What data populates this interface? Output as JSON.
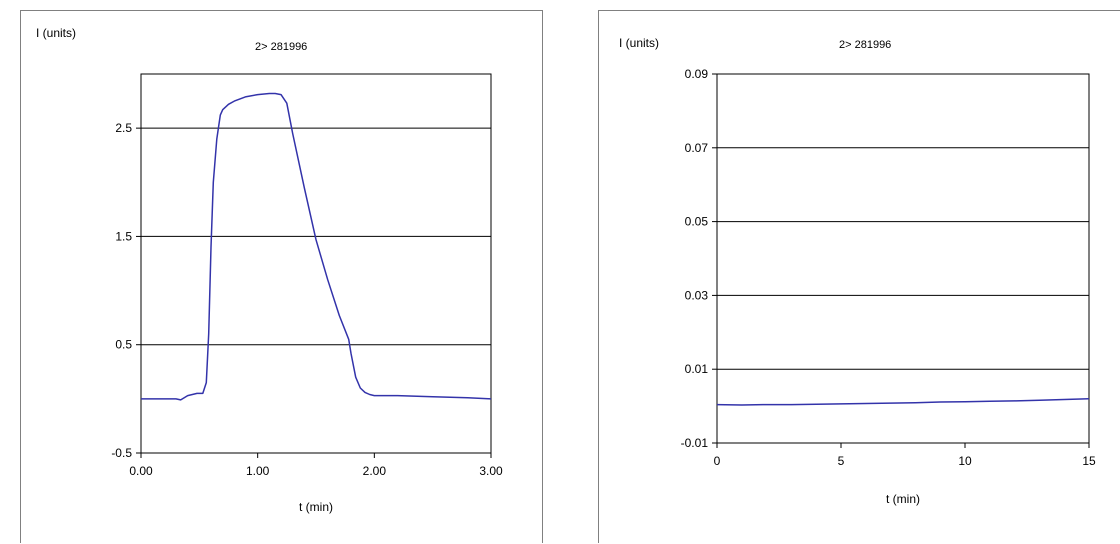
{
  "chart_data": [
    {
      "type": "line",
      "title": "2> 281996",
      "ylabel": "I (units)",
      "xlabel": "t (min)",
      "xlim": [
        0,
        3
      ],
      "ylim": [
        -0.5,
        3
      ],
      "x_ticks": [
        "0.00",
        "1.00",
        "2.00",
        "3.00"
      ],
      "x_tick_values": [
        0,
        1,
        2,
        3
      ],
      "y_ticks": [
        "2.5",
        "1.5",
        "0.5",
        "-0.5"
      ],
      "y_tick_values": [
        2.5,
        1.5,
        0.5,
        -0.5
      ],
      "gridlines": [
        2.5,
        1.5,
        0.5
      ],
      "grid": "horizontal",
      "series": [
        {
          "color": "#3333aa",
          "x": [
            0.0,
            0.2,
            0.3,
            0.34,
            0.4,
            0.48,
            0.53,
            0.56,
            0.58,
            0.6,
            0.62,
            0.65,
            0.68,
            0.7,
            0.75,
            0.8,
            0.9,
            1.0,
            1.1,
            1.15,
            1.2,
            1.25,
            1.3,
            1.4,
            1.5,
            1.6,
            1.7,
            1.78,
            1.8,
            1.84,
            1.88,
            1.92,
            1.96,
            2.0,
            2.2,
            2.5,
            2.8,
            3.0
          ],
          "y": [
            0.0,
            0.0,
            0.0,
            -0.01,
            0.03,
            0.05,
            0.05,
            0.15,
            0.6,
            1.4,
            2.0,
            2.4,
            2.62,
            2.67,
            2.72,
            2.75,
            2.79,
            2.81,
            2.82,
            2.82,
            2.81,
            2.73,
            2.45,
            1.95,
            1.47,
            1.1,
            0.77,
            0.55,
            0.42,
            0.2,
            0.1,
            0.06,
            0.04,
            0.03,
            0.03,
            0.02,
            0.01,
            0.0
          ]
        }
      ]
    },
    {
      "type": "line",
      "title": "2> 281996",
      "ylabel": "I (units)",
      "xlabel": "t (min)",
      "xlim": [
        0,
        15
      ],
      "ylim": [
        -0.01,
        0.09
      ],
      "x_ticks": [
        "0",
        "5",
        "10",
        "15"
      ],
      "x_tick_values": [
        0,
        5,
        10,
        15
      ],
      "y_ticks": [
        "0.09",
        "0.07",
        "0.05",
        "0.03",
        "0.01",
        "-0.01"
      ],
      "y_tick_values": [
        0.09,
        0.07,
        0.05,
        0.03,
        0.01,
        -0.01
      ],
      "gridlines": [
        0.07,
        0.05,
        0.03,
        0.01
      ],
      "grid": "horizontal",
      "series": [
        {
          "color": "#3333aa",
          "x": [
            0,
            1,
            2,
            3,
            4,
            5,
            6,
            7,
            8,
            9,
            10,
            11,
            12,
            13,
            14,
            15
          ],
          "y": [
            0.0004,
            0.0003,
            0.0004,
            0.0004,
            0.0005,
            0.0006,
            0.0007,
            0.0008,
            0.0009,
            0.0011,
            0.0012,
            0.0013,
            0.0014,
            0.0016,
            0.0018,
            0.002
          ]
        }
      ]
    }
  ]
}
